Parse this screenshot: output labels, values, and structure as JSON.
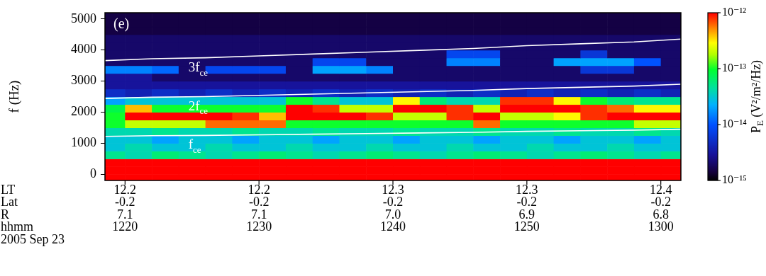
{
  "chart_data": {
    "type": "heatmap",
    "panel_label": "(e)",
    "y_label": "f (Hz)",
    "x_rows": [
      "LT",
      "Lat",
      "R",
      "hhmm"
    ],
    "date": "2005 Sep 23",
    "xlim": [
      738.5,
      781.5
    ],
    "xticks": [
      {
        "value": 740,
        "label": [
          "12.2",
          "-0.2",
          "7.1",
          "1220"
        ]
      },
      {
        "value": 750,
        "label": [
          "12.2",
          "-0.2",
          "7.1",
          "1230"
        ]
      },
      {
        "value": 760,
        "label": [
          "12.3",
          "-0.2",
          "7.0",
          "1240"
        ]
      },
      {
        "value": 770,
        "label": [
          "12.3",
          "-0.2",
          "6.9",
          "1250"
        ]
      },
      {
        "value": 780,
        "label": [
          "12.4",
          "-0.2",
          "6.8",
          "1300"
        ]
      }
    ],
    "ylim": [
      -200,
      5200
    ],
    "yticks": [
      0,
      1000,
      2000,
      3000,
      4000,
      5000
    ],
    "grid": false,
    "x_bins": [
      738,
      740,
      742,
      744,
      746,
      748,
      750,
      752,
      754,
      756,
      758,
      760,
      762,
      764,
      766,
      768,
      770,
      772,
      774,
      776,
      778,
      780,
      782
    ],
    "y_bins": [
      -250,
      0,
      250,
      500,
      750,
      1000,
      1250,
      1500,
      1750,
      2000,
      2250,
      2500,
      2750,
      3000,
      3250,
      3500,
      3750,
      4000,
      4250,
      4500,
      4750,
      5000,
      5250
    ],
    "cells": [
      [
        1e-12,
        1e-12,
        1e-12,
        1e-12,
        1e-12,
        1e-12,
        1e-12,
        1e-12,
        1e-12,
        1e-12,
        1e-12,
        1e-12,
        1e-12,
        1e-12,
        1e-12,
        1e-12,
        1e-12,
        1e-12,
        1e-12,
        1e-12,
        1e-12,
        1e-12
      ],
      [
        1e-12,
        1e-12,
        1e-12,
        1e-12,
        1e-12,
        1e-12,
        1e-12,
        1e-12,
        1e-12,
        1e-12,
        1e-12,
        1e-12,
        1e-12,
        1e-12,
        1e-12,
        1e-12,
        1e-12,
        1e-12,
        1e-12,
        1e-12,
        1e-12,
        1e-12
      ],
      [
        1e-12,
        1e-12,
        1e-12,
        1e-12,
        1e-12,
        1e-12,
        1e-12,
        1e-12,
        1e-12,
        1e-12,
        1e-12,
        1e-12,
        1e-12,
        1e-12,
        1e-12,
        1e-12,
        1e-12,
        1e-12,
        1e-12,
        1e-12,
        1e-12,
        1e-12
      ],
      [
        5e-14,
        4e-14,
        6e-14,
        5e-14,
        4e-14,
        5e-14,
        6e-14,
        5e-14,
        4e-14,
        5e-14,
        6e-14,
        5e-14,
        4e-14,
        5e-14,
        6e-14,
        5e-14,
        4e-14,
        5e-14,
        6e-14,
        5e-14,
        4e-14,
        5e-14
      ],
      [
        3e-14,
        4e-14,
        3e-14,
        3e-14,
        4e-14,
        3e-14,
        3e-14,
        4e-14,
        3e-14,
        3e-14,
        4e-14,
        3e-14,
        3e-14,
        4e-14,
        3e-14,
        3e-14,
        4e-14,
        3e-14,
        3e-14,
        4e-14,
        3e-14,
        3e-14
      ],
      [
        3e-14,
        3e-14,
        2e-14,
        3e-14,
        3e-14,
        2e-14,
        3e-14,
        3e-14,
        2e-14,
        3e-14,
        3e-14,
        2e-14,
        3e-14,
        3e-14,
        2e-14,
        3e-14,
        3e-14,
        2e-14,
        3e-14,
        3e-14,
        2e-14,
        3e-14
      ],
      [
        4e-14,
        4e-14,
        5e-14,
        4e-14,
        4e-14,
        5e-14,
        4e-14,
        4e-14,
        5e-14,
        4e-14,
        4e-14,
        5e-14,
        4e-14,
        4e-14,
        5e-14,
        4e-14,
        4e-14,
        5e-14,
        4e-14,
        4e-14,
        5e-14,
        4e-14
      ],
      [
        1e-13,
        2e-13,
        2e-13,
        2e-13,
        6e-13,
        6e-13,
        6e-13,
        1e-13,
        1e-13,
        1e-13,
        1e-13,
        1e-13,
        1e-13,
        1e-13,
        6e-13,
        1e-13,
        1e-13,
        1e-13,
        1e-13,
        1e-13,
        2e-13,
        2e-13
      ],
      [
        1e-13,
        1e-12,
        1e-12,
        1e-12,
        1e-12,
        8e-13,
        4e-13,
        1e-12,
        1e-12,
        1e-12,
        8e-13,
        2e-13,
        2e-13,
        8e-13,
        1e-12,
        2e-13,
        2e-13,
        3e-13,
        8e-13,
        1e-12,
        1e-12,
        1e-12
      ],
      [
        8e-14,
        4e-13,
        1e-13,
        1e-13,
        1e-13,
        1e-13,
        1e-13,
        1e-12,
        8e-13,
        2e-13,
        2e-13,
        1e-12,
        1e-12,
        8e-13,
        2e-13,
        1e-12,
        1e-12,
        1e-12,
        8e-13,
        6e-13,
        3e-13,
        3e-13
      ],
      [
        2e-14,
        3e-14,
        3e-14,
        3e-14,
        3e-14,
        3e-14,
        3e-14,
        1e-13,
        5e-14,
        3e-14,
        3e-14,
        3e-13,
        6e-14,
        4e-14,
        4e-14,
        8e-13,
        8e-13,
        3e-13,
        1e-13,
        6e-14,
        5e-14,
        5e-14
      ],
      [
        5e-15,
        4e-15,
        5e-15,
        4e-15,
        5e-15,
        4e-15,
        5e-15,
        4e-15,
        5e-15,
        4e-15,
        5e-15,
        4e-15,
        5e-15,
        4e-15,
        5e-15,
        4e-15,
        5e-15,
        4e-15,
        5e-15,
        4e-15,
        5e-15,
        4e-15
      ],
      [
        3e-15,
        3e-15,
        3e-15,
        3e-15,
        3e-15,
        3e-15,
        3e-15,
        3e-15,
        3e-15,
        3e-15,
        3e-15,
        3e-15,
        3e-15,
        3e-15,
        3e-15,
        3e-15,
        3e-15,
        3e-15,
        3e-15,
        3e-15,
        3e-15,
        3e-15
      ],
      [
        3e-15,
        3e-15,
        2e-15,
        2e-15,
        2e-15,
        2e-15,
        2e-15,
        2e-15,
        2e-15,
        2e-15,
        2e-15,
        2e-15,
        2e-15,
        2e-15,
        2e-15,
        2e-15,
        2e-15,
        2e-15,
        2e-15,
        2e-15,
        2e-15,
        2e-15
      ],
      [
        1.5e-14,
        1.5e-14,
        1.2e-14,
        2e-15,
        8e-15,
        8e-15,
        8e-15,
        2e-15,
        2e-14,
        2e-14,
        1.5e-14,
        2e-15,
        2e-15,
        2e-15,
        2e-15,
        2e-15,
        2e-15,
        2e-15,
        6e-15,
        6e-15,
        2e-15,
        2e-15
      ],
      [
        2e-15,
        2e-15,
        2e-15,
        2e-15,
        2e-15,
        2e-15,
        2e-15,
        2e-15,
        8e-15,
        8e-15,
        2e-15,
        2e-15,
        2e-15,
        1.5e-14,
        1.5e-14,
        2e-15,
        2e-15,
        2e-14,
        2e-14,
        2e-14,
        1e-14,
        2e-15
      ],
      [
        2e-15,
        2e-15,
        2e-15,
        2e-15,
        2e-15,
        2e-15,
        2e-15,
        2e-15,
        2e-15,
        2e-15,
        2e-15,
        2e-15,
        2e-15,
        8e-15,
        8e-15,
        2e-15,
        2e-15,
        2e-15,
        6e-15,
        2e-15,
        2e-15,
        2e-15
      ],
      [
        2e-15,
        2e-15,
        2e-15,
        2e-15,
        2e-15,
        2e-15,
        2e-15,
        2e-15,
        2e-15,
        2e-15,
        2e-15,
        2e-15,
        2e-15,
        2e-15,
        2e-15,
        2e-15,
        2e-15,
        2e-15,
        2e-15,
        2e-15,
        2e-15,
        2e-15
      ],
      [
        2e-15,
        2e-15,
        2e-15,
        2e-15,
        2e-15,
        2e-15,
        2e-15,
        2e-15,
        2e-15,
        2e-15,
        2e-15,
        2e-15,
        2e-15,
        2e-15,
        2e-15,
        2e-15,
        2e-15,
        2e-15,
        2e-15,
        2e-15,
        2e-15,
        2e-15
      ],
      [
        1.5e-15,
        1.5e-15,
        1.5e-15,
        1.5e-15,
        1.5e-15,
        1.5e-15,
        1.5e-15,
        1.5e-15,
        1.5e-15,
        1.5e-15,
        1.5e-15,
        1.5e-15,
        1.5e-15,
        1.5e-15,
        1.5e-15,
        1.5e-15,
        1.5e-15,
        1.5e-15,
        1.5e-15,
        1.5e-15,
        1.5e-15,
        1.5e-15
      ],
      [
        1.5e-15,
        1.5e-15,
        1.5e-15,
        1.5e-15,
        1.5e-15,
        1.5e-15,
        1.5e-15,
        1.5e-15,
        1.5e-15,
        1.5e-15,
        1.5e-15,
        1.5e-15,
        1.5e-15,
        1.5e-15,
        1.5e-15,
        1.5e-15,
        1.5e-15,
        1.5e-15,
        1.5e-15,
        1.5e-15,
        1.5e-15,
        1.5e-15
      ],
      [
        1.5e-15,
        1.5e-15,
        1.5e-15,
        1.5e-15,
        1.5e-15,
        1.5e-15,
        1.5e-15,
        1.5e-15,
        1.5e-15,
        1.5e-15,
        1.5e-15,
        1.5e-15,
        1.5e-15,
        1.5e-15,
        1.5e-15,
        1.5e-15,
        1.5e-15,
        1.5e-15,
        1.5e-15,
        1.5e-15,
        1.5e-15,
        1.5e-15
      ]
    ],
    "colorbar": {
      "label": "PE (V²/m²/Hz)",
      "range": [
        1e-15,
        1e-12
      ],
      "log": true,
      "ticks": [
        {
          "value": 1e-15,
          "label": "10⁻¹⁵"
        },
        {
          "value": 1e-14,
          "label": "10⁻¹⁴"
        },
        {
          "value": 1e-13,
          "label": "10⁻¹³"
        },
        {
          "value": 1e-12,
          "label": "10⁻¹²"
        }
      ]
    },
    "series": [
      {
        "name": "fce",
        "color": "#ffffff",
        "x": [
          738.5,
          742,
          746,
          750,
          754,
          758,
          762,
          766,
          770,
          774,
          778,
          781.5
        ],
        "values": [
          1220,
          1240,
          1250,
          1270,
          1290,
          1310,
          1330,
          1350,
          1380,
          1400,
          1420,
          1450
        ]
      },
      {
        "name": "2fce",
        "color": "#ffffff",
        "x": [
          738.5,
          742,
          746,
          750,
          754,
          758,
          762,
          766,
          770,
          774,
          778,
          781.5
        ],
        "values": [
          2440,
          2480,
          2500,
          2540,
          2580,
          2620,
          2660,
          2700,
          2760,
          2800,
          2840,
          2900
        ]
      },
      {
        "name": "3fce",
        "color": "#ffffff",
        "x": [
          738.5,
          742,
          746,
          750,
          754,
          758,
          762,
          766,
          770,
          774,
          778,
          781.5
        ],
        "values": [
          3660,
          3720,
          3750,
          3810,
          3870,
          3930,
          3990,
          4050,
          4140,
          4200,
          4260,
          4350
        ]
      }
    ]
  }
}
